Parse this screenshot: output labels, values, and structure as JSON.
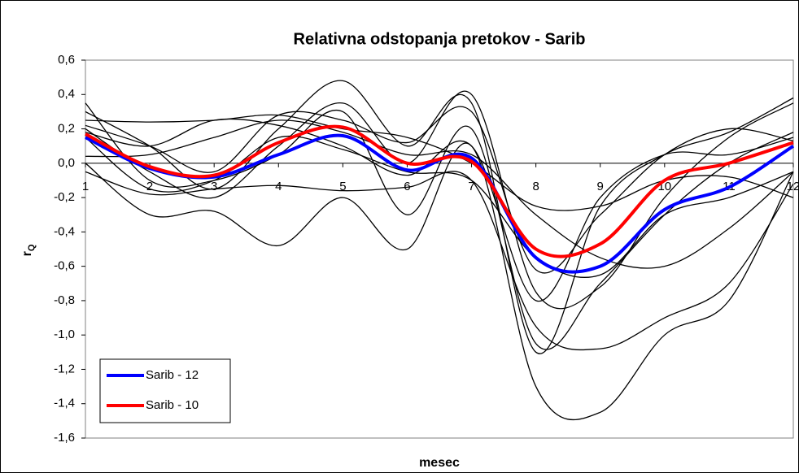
{
  "chart_data": {
    "type": "line",
    "title": "Relativna odstopanja pretokov - Sarib",
    "x_label": "mesec",
    "y_label": "r",
    "y_label_sub": "Q",
    "x": [
      1,
      2,
      3,
      4,
      5,
      6,
      7,
      8,
      9,
      10,
      11,
      12
    ],
    "xlim": [
      1,
      12
    ],
    "xticks": [
      1,
      2,
      3,
      4,
      5,
      6,
      7,
      8,
      9,
      10,
      11,
      12
    ],
    "ylim": [
      -1.6,
      0.6
    ],
    "yticks": [
      {
        "value": -1.6,
        "label": "-1,6"
      },
      {
        "value": -1.4,
        "label": "-1,4"
      },
      {
        "value": -1.2,
        "label": "-1,2"
      },
      {
        "value": -1.0,
        "label": "-1,0"
      },
      {
        "value": -0.8,
        "label": "-0,8"
      },
      {
        "value": -0.6,
        "label": "-0,6"
      },
      {
        "value": -0.4,
        "label": "-0,4"
      },
      {
        "value": -0.2,
        "label": "-0,2"
      },
      {
        "value": 0,
        "label": "0,0"
      },
      {
        "value": 0.2,
        "label": "0,2"
      },
      {
        "value": 0.4,
        "label": "0,4"
      },
      {
        "value": 0.6,
        "label": "0,6"
      }
    ],
    "legend": "bottom-left",
    "series": [
      {
        "color": "#000000",
        "values": [
          0.3,
          0.1,
          -0.15,
          0.2,
          0.48,
          0.1,
          0.35,
          -1.1,
          -0.25,
          0.05,
          0.18,
          0.38
        ]
      },
      {
        "color": "#000000",
        "values": [
          0.2,
          -0.05,
          -0.2,
          0.1,
          0.35,
          0.0,
          0.4,
          -0.75,
          -0.72,
          -0.2,
          0.15,
          0.35
        ]
      },
      {
        "color": "#000000",
        "values": [
          0.0,
          -0.3,
          -0.28,
          -0.48,
          -0.2,
          -0.5,
          0.1,
          -1.3,
          -1.45,
          -1.0,
          -0.8,
          -0.05
        ]
      },
      {
        "color": "#000000",
        "values": [
          -0.05,
          -0.18,
          -0.15,
          -0.13,
          -0.16,
          -0.14,
          -0.1,
          -0.95,
          -1.08,
          -0.9,
          -0.7,
          -0.12
        ]
      },
      {
        "color": "#000000",
        "values": [
          0.25,
          0.24,
          0.25,
          0.28,
          0.2,
          0.15,
          0.0,
          -0.25,
          -0.25,
          -0.1,
          -0.08,
          -0.2
        ]
      },
      {
        "color": "#000000",
        "values": [
          0.22,
          0.1,
          -0.05,
          0.28,
          0.25,
          0.12,
          0.3,
          -0.62,
          -0.3,
          0.05,
          0.2,
          0.13
        ]
      },
      {
        "color": "#000000",
        "values": [
          0.04,
          0.05,
          0.15,
          0.25,
          0.18,
          0.05,
          0.05,
          -0.3,
          -0.55,
          -0.6,
          -0.38,
          -0.05
        ]
      },
      {
        "color": "#000000",
        "values": [
          0.35,
          -0.1,
          -0.1,
          0.05,
          0.3,
          -0.3,
          0.2,
          -1.05,
          -0.7,
          -0.3,
          0.0,
          0.18
        ]
      },
      {
        "color": "#000000",
        "values": [
          0.18,
          0.1,
          0.25,
          0.22,
          0.1,
          -0.07,
          0.1,
          -0.8,
          -0.2,
          0.05,
          0.05,
          0.15
        ]
      },
      {
        "color": "#000000",
        "values": [
          0.15,
          -0.15,
          -0.1,
          0.15,
          0.08,
          -0.05,
          -0.1,
          -0.55,
          -0.65,
          -0.3,
          -0.2,
          -0.05
        ]
      },
      {
        "name": "Sarib - 12",
        "color": "#0000ff",
        "values": [
          0.15,
          -0.03,
          -0.08,
          0.05,
          0.16,
          -0.04,
          0.03,
          -0.55,
          -0.6,
          -0.27,
          -0.14,
          0.1
        ]
      },
      {
        "name": "Sarib - 10",
        "color": "#ff0000",
        "values": [
          0.17,
          -0.02,
          -0.07,
          0.12,
          0.21,
          0.0,
          0.01,
          -0.5,
          -0.47,
          -0.1,
          0.0,
          0.12
        ]
      }
    ]
  }
}
